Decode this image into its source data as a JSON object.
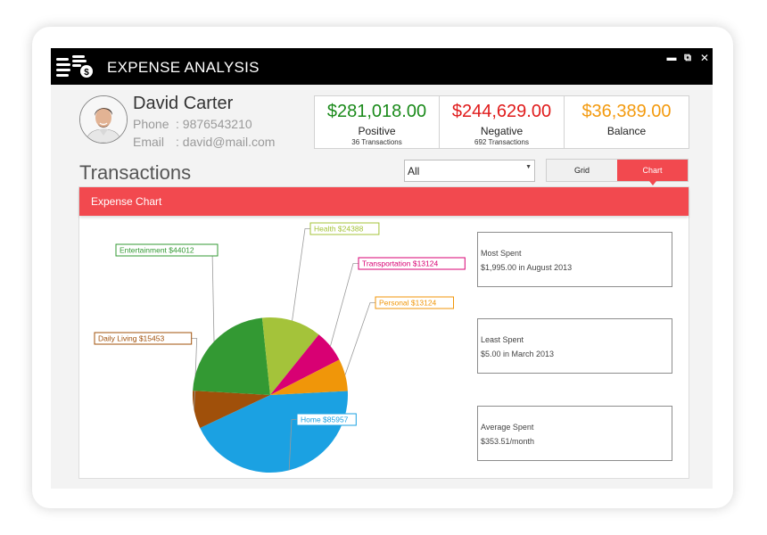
{
  "window": {
    "title": "EXPENSE ANALYSIS",
    "controls": {
      "minimize": "▬",
      "restore": "⧉",
      "close": "✕"
    },
    "logo_icon": "coins-dollar-icon"
  },
  "user": {
    "name": "David Carter",
    "phone_label": "Phone",
    "phone_value": ": 9876543210",
    "email_label": "Email",
    "email_value": ": david@mail.com",
    "avatar_icon": "user-avatar"
  },
  "stats": {
    "positive": {
      "amount": "$281,018.00",
      "label": "Positive",
      "sub": "36 Transactions",
      "color": "#1a8a1a"
    },
    "negative": {
      "amount": "$244,629.00",
      "label": "Negative",
      "sub": "692 Transactions",
      "color": "#e01b1b"
    },
    "balance": {
      "amount": "$36,389.00",
      "label": "Balance",
      "color": "#f39a0e"
    }
  },
  "transactions": {
    "title": "Transactions",
    "filter_value": "All",
    "view_toggle": {
      "grid": "Grid",
      "chart": "Chart",
      "active": "chart"
    },
    "accent_color": "#f2494f"
  },
  "chart_panel": {
    "header": "Expense Chart"
  },
  "chart_data": {
    "type": "pie",
    "categories": [
      "Home",
      "Daily Living",
      "Entertainment",
      "Health",
      "Transportation",
      "Personal"
    ],
    "values": [
      85957,
      15453,
      44012,
      24388,
      13124,
      13124
    ],
    "labels": [
      "Home $85957",
      "Daily Living $15453",
      "Entertainment $44012",
      "Health $24388",
      "Transportation $13124",
      "Personal $13124"
    ],
    "colors": [
      "#1ba1e2",
      "#a0500a",
      "#339933",
      "#a4c33a",
      "#d80073",
      "#f09609"
    ],
    "legend": "callout-labels"
  },
  "summary": {
    "most": {
      "label": "Most Spent",
      "value": "$1,995.00 in August 2013"
    },
    "least": {
      "label": "Least Spent",
      "value": "$5.00 in March 2013"
    },
    "average": {
      "label": "Average Spent",
      "value": "$353.51/month"
    }
  }
}
